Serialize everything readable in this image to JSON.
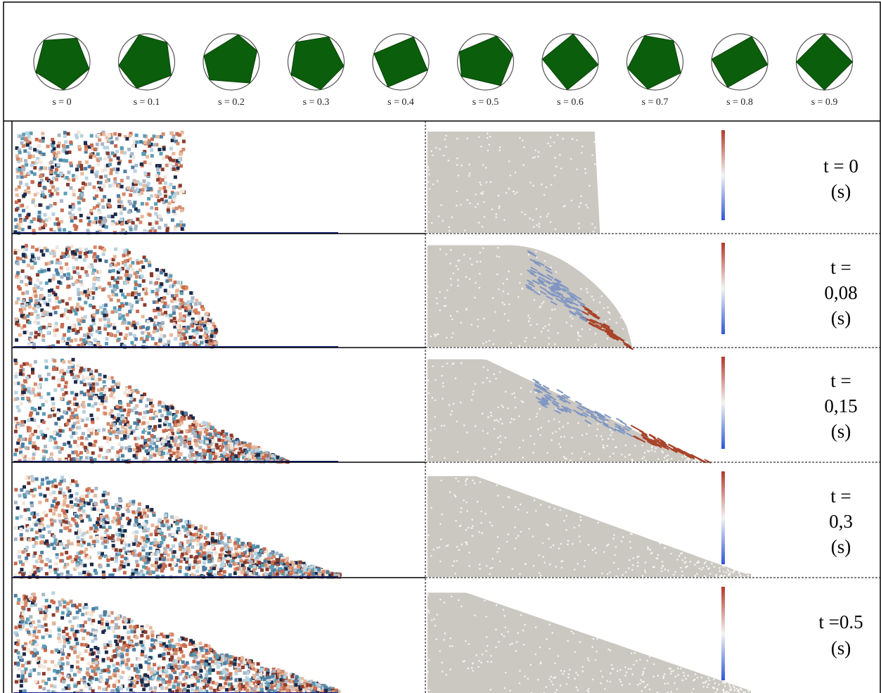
{
  "shape_row": {
    "shape_color": "#0b5e0b",
    "labels": [
      "s = 0",
      "s = 0.1",
      "s = 0.2",
      "s = 0.3",
      "s = 0.4",
      "s = 0.5",
      "s = 0.6",
      "s = 0.7",
      "s = 0.8",
      "s = 0.9"
    ]
  },
  "colors": {
    "particle_palette": [
      "#1c2a4a",
      "#b8d3e0",
      "#c96a4e",
      "#e7b89b",
      "#4f7fa3",
      "#f2e6dc",
      "#8a3b2c",
      "#5b9db5",
      "#d48a6a",
      "#a9b7c7"
    ],
    "packing_gray": "#cbc7c1",
    "velocity_blue": "#7f97c2",
    "velocity_red": "#a8442a",
    "colorbar_high": "#b4382a",
    "colorbar_low": "#2f57d6"
  },
  "time_rows": [
    {
      "lines": [
        "t = 0",
        "(s)"
      ],
      "stage": 0
    },
    {
      "lines": [
        "t =",
        "0,08",
        "(s)"
      ],
      "stage": 1
    },
    {
      "lines": [
        "t =",
        "0,15",
        "(s)"
      ],
      "stage": 2
    },
    {
      "lines": [
        "t =",
        "0,3",
        "(s)"
      ],
      "stage": 3
    },
    {
      "lines": [
        "t =0.5",
        "(s)"
      ],
      "stage": 4
    }
  ]
}
